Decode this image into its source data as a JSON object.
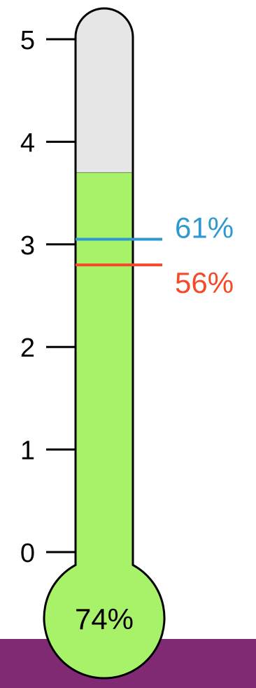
{
  "chart_data": {
    "type": "thermometer",
    "scale": {
      "min": 0,
      "max": 5,
      "ticks": [
        "0",
        "1",
        "2",
        "3",
        "4",
        "5"
      ]
    },
    "fill_value": 3.7,
    "fill_percent_label": "74%",
    "markers": [
      {
        "value": 3.05,
        "label": "61%",
        "color": "#2e99cf"
      },
      {
        "value": 2.8,
        "label": "56%",
        "color": "#f44a2a"
      }
    ],
    "colors": {
      "fill": "#a8f26a",
      "empty": "#e6e6e6",
      "outline": "#000000",
      "base_band": "#7f2a73"
    }
  }
}
